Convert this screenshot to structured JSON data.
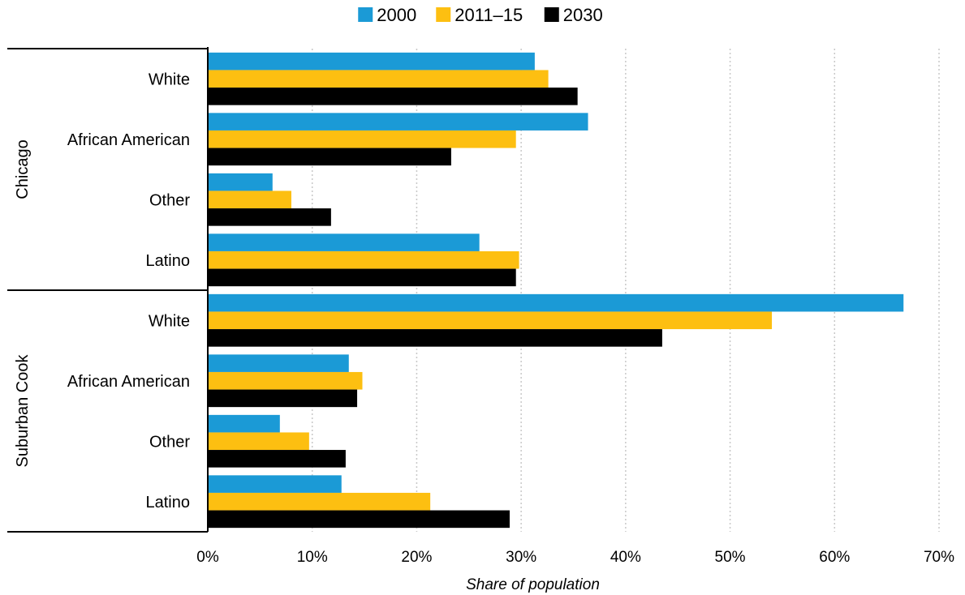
{
  "colors": {
    "2000": "#1b9ad6",
    "2011-15": "#fdbf11",
    "2030": "#000000",
    "grid": "#c8c8c8"
  },
  "chart_data": {
    "type": "bar",
    "orientation": "horizontal",
    "xlabel": "Share of population",
    "xlim": [
      0,
      70
    ],
    "x_ticks": [
      "0%",
      "10%",
      "20%",
      "30%",
      "40%",
      "50%",
      "60%",
      "70%"
    ],
    "grid": "vertical-dotted",
    "legend_position": "top-center",
    "groups": [
      {
        "name": "Chicago",
        "categories": [
          "White",
          "African American",
          "Other",
          "Latino"
        ]
      },
      {
        "name": "Suburban Cook",
        "categories": [
          "White",
          "African American",
          "Other",
          "Latino"
        ]
      }
    ],
    "series": [
      {
        "name": "2000",
        "color": "#1b9ad6",
        "values": [
          31.3,
          36.4,
          6.2,
          26.0,
          66.6,
          13.5,
          6.9,
          12.8
        ]
      },
      {
        "name": "2011–15",
        "color": "#fdbf11",
        "values": [
          32.6,
          29.5,
          8.0,
          29.8,
          54.0,
          14.8,
          9.7,
          21.3
        ]
      },
      {
        "name": "2030",
        "color": "#000000",
        "values": [
          35.4,
          23.3,
          11.8,
          29.5,
          43.5,
          14.3,
          13.2,
          28.9
        ]
      }
    ]
  }
}
